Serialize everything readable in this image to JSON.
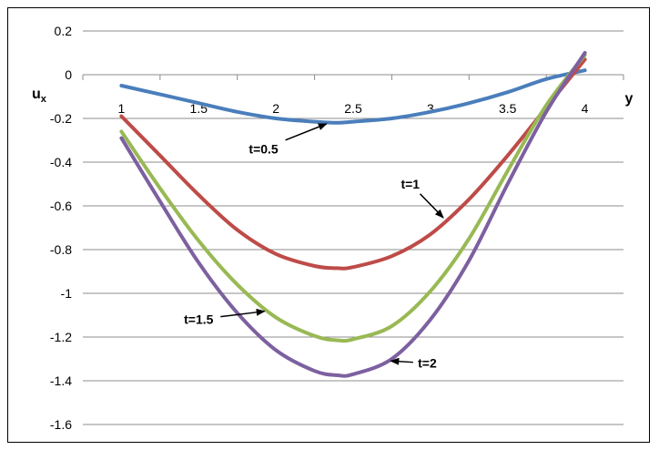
{
  "chart_data": {
    "type": "line",
    "title": "",
    "xlabel": "y",
    "ylabel_main": "u",
    "ylabel_sub": "x",
    "xlim": [
      1,
      4
    ],
    "ylim": [
      -1.6,
      0.2
    ],
    "x_ticks": [
      1,
      1.5,
      2,
      2.5,
      3,
      3.5,
      4
    ],
    "x_tick_labels": [
      "1",
      "1.5",
      "2",
      "2.5",
      "3",
      "3.5",
      "4"
    ],
    "y_ticks": [
      0.2,
      0,
      -0.2,
      -0.4,
      -0.6,
      -0.8,
      -1,
      -1.2,
      -1.4,
      -1.6
    ],
    "y_tick_labels": [
      "0.2",
      "0",
      "-0.2",
      "-0.4",
      "-0.6",
      "-0.8",
      "-1",
      "-1.2",
      "-1.4",
      "-1.6"
    ],
    "grid": "horizontal",
    "legend": "none",
    "series": [
      {
        "label": "t=0.5",
        "color": "#4a7ebb",
        "x": [
          1,
          1.25,
          1.5,
          1.75,
          2,
          2.25,
          2.4,
          2.5,
          2.75,
          3,
          3.25,
          3.5,
          3.75,
          4
        ],
        "y": [
          -0.05,
          -0.09,
          -0.13,
          -0.17,
          -0.2,
          -0.215,
          -0.22,
          -0.215,
          -0.2,
          -0.17,
          -0.13,
          -0.08,
          -0.02,
          0.02
        ]
      },
      {
        "label": "t=1",
        "color": "#be4b48",
        "x": [
          1,
          1.25,
          1.5,
          1.75,
          2,
          2.25,
          2.4,
          2.5,
          2.75,
          3,
          3.25,
          3.5,
          3.75,
          4
        ],
        "y": [
          -0.19,
          -0.37,
          -0.55,
          -0.71,
          -0.82,
          -0.875,
          -0.885,
          -0.88,
          -0.83,
          -0.73,
          -0.57,
          -0.37,
          -0.15,
          0.07
        ]
      },
      {
        "label": "t=1.5",
        "color": "#98b954",
        "x": [
          1,
          1.25,
          1.5,
          1.75,
          2,
          2.25,
          2.4,
          2.5,
          2.75,
          3,
          3.25,
          3.5,
          3.75,
          4
        ],
        "y": [
          -0.26,
          -0.52,
          -0.76,
          -0.96,
          -1.11,
          -1.195,
          -1.215,
          -1.21,
          -1.15,
          -0.99,
          -0.75,
          -0.44,
          -0.14,
          0.09
        ]
      },
      {
        "label": "t=2",
        "color": "#7d60a0",
        "x": [
          1,
          1.25,
          1.5,
          1.75,
          2,
          2.25,
          2.4,
          2.5,
          2.75,
          3,
          3.25,
          3.5,
          3.75,
          4
        ],
        "y": [
          -0.29,
          -0.58,
          -0.86,
          -1.09,
          -1.26,
          -1.355,
          -1.375,
          -1.37,
          -1.3,
          -1.12,
          -0.85,
          -0.5,
          -0.17,
          0.1
        ]
      }
    ],
    "annotations": [
      {
        "text": "t=0.5",
        "series": 0,
        "at_x": 2.35,
        "label_x": 1.92,
        "label_y": -0.36
      },
      {
        "text": "t=1",
        "series": 1,
        "at_x": 3.1,
        "label_x": 2.87,
        "label_y": -0.52
      },
      {
        "text": "t=1.5",
        "series": 2,
        "at_x": 1.95,
        "label_x": 1.5,
        "label_y": -1.14
      },
      {
        "text": "t=2",
        "series": 3,
        "at_x": 2.72,
        "label_x": 2.98,
        "label_y": -1.34
      }
    ]
  }
}
